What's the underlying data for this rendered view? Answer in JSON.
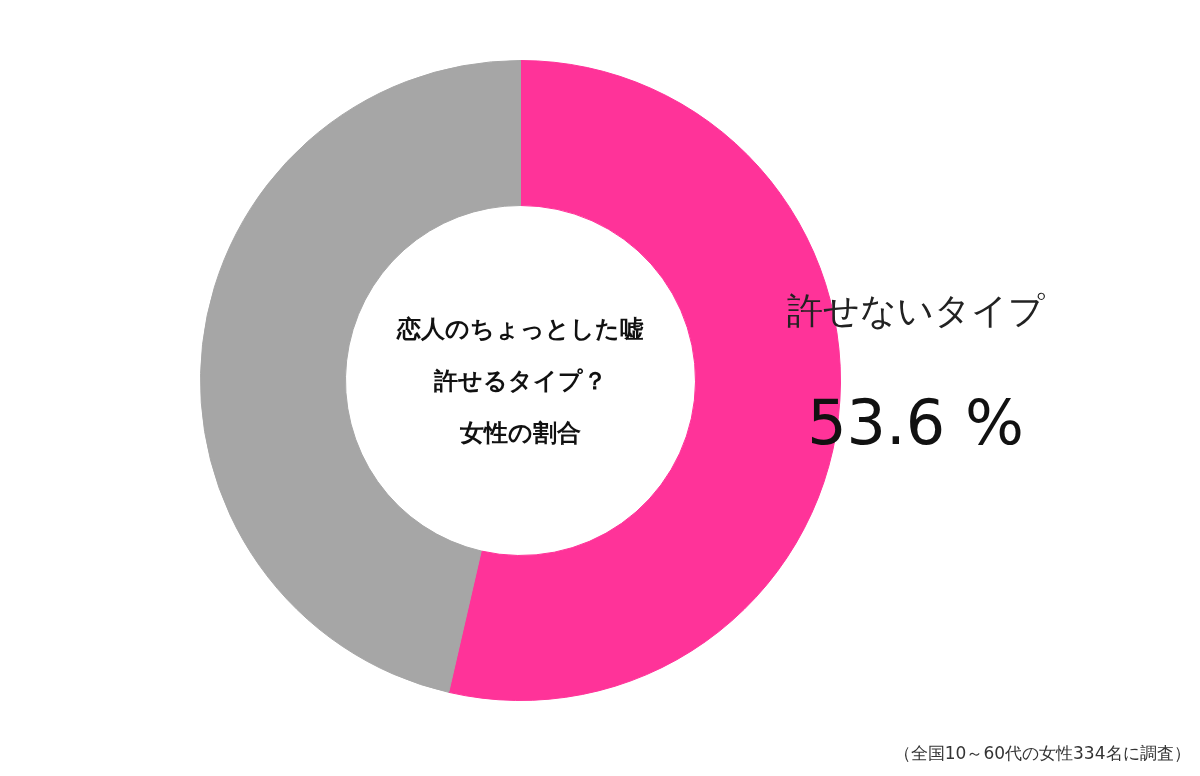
{
  "chart_data": {
    "type": "donut",
    "title": "恋人のちょっとした嘘許せるタイプ？",
    "subtitle": "女性の割合",
    "categories": [
      "許せないタイプ",
      null
    ],
    "values": [
      53.6,
      46.4
    ],
    "colors": [
      "#ff3399",
      "#a6a6a6"
    ],
    "value_labels": [
      "53.6 %",
      null
    ],
    "annotations": [
      "（全国10～60代の女性334名に調査）"
    ]
  }
}
